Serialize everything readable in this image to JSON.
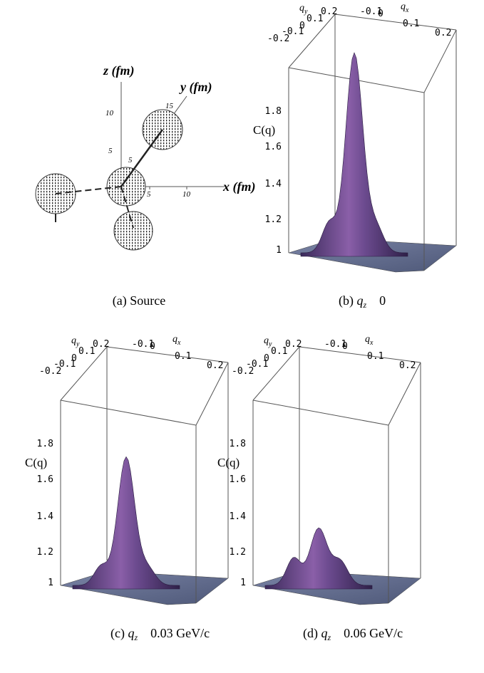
{
  "panel_a": {
    "z_label": "z (fm)",
    "y_label": "y (fm)",
    "x_label": "x (fm)",
    "z_ticks": [
      "10",
      "5"
    ],
    "y_ticks": [
      "15",
      "5"
    ],
    "x_ticks": [
      "5",
      "10"
    ],
    "caption": "(a) Source"
  },
  "panels": [
    {
      "caption_prefix": "(b) ",
      "caption_var": "q",
      "caption_sub": "z",
      "caption_value": "0",
      "x_label": {
        "base": "q",
        "sub": "x"
      },
      "y_label": {
        "base": "q",
        "sub": "y"
      },
      "z_label": "C(q)",
      "x_ticks": [
        "-0.1",
        "0",
        "0.1",
        "0.2"
      ],
      "y_ticks": [
        "0.2",
        "0.1",
        "0",
        "-0.1",
        "-0.2"
      ],
      "z_ticks": [
        "1.8",
        "1.6",
        "1.4",
        "1.2",
        "1"
      ]
    },
    {
      "caption_prefix": "(c) ",
      "caption_var": "q",
      "caption_sub": "z",
      "caption_value": "0.03 GeV/c",
      "x_label": {
        "base": "q",
        "sub": "x"
      },
      "y_label": {
        "base": "q",
        "sub": "y"
      },
      "z_label": "C(q)",
      "x_ticks": [
        "-0.1",
        "0",
        "0.1",
        "0.2"
      ],
      "y_ticks": [
        "0.2",
        "0.1",
        "0",
        "-0.1",
        "-0.2"
      ],
      "z_ticks": [
        "1.8",
        "1.6",
        "1.4",
        "1.2",
        "1"
      ]
    },
    {
      "caption_prefix": "(d) ",
      "caption_var": "q",
      "caption_sub": "z",
      "caption_value": "0.06 GeV/c",
      "x_label": {
        "base": "q",
        "sub": "x"
      },
      "y_label": {
        "base": "q",
        "sub": "y"
      },
      "z_label": "C(q)",
      "x_ticks": [
        "-0.1",
        "0",
        "0.1",
        "0.2"
      ],
      "y_ticks": [
        "0.2",
        "0.1",
        "0",
        "-0.1",
        "-0.2"
      ],
      "z_ticks": [
        "1.8",
        "1.6",
        "1.4",
        "1.2",
        "1"
      ]
    }
  ]
}
